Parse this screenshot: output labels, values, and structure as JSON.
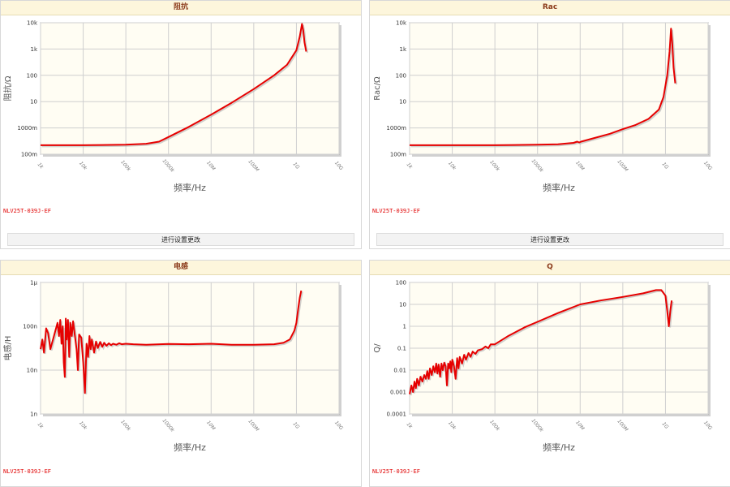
{
  "apply_button_label": "进行设置更改",
  "colors": {
    "series": "#e60000",
    "plot_bg": "#fffdf3",
    "header_bg": "#fdf6dc",
    "header_text": "#8b3a1a"
  },
  "chart_data": [
    {
      "id": "impedance",
      "type": "line",
      "title": "阻抗",
      "xlabel": "频率/Hz",
      "ylabel": "阻抗/Ω",
      "x_scale": "log",
      "y_scale": "log",
      "xlim": [
        1000,
        10000000000
      ],
      "ylim": [
        0.1,
        10000
      ],
      "x_ticks": [
        {
          "v": 1000,
          "label": "1k"
        },
        {
          "v": 10000,
          "label": "10k"
        },
        {
          "v": 100000,
          "label": "100k"
        },
        {
          "v": 1000000,
          "label": "1000k"
        },
        {
          "v": 10000000,
          "label": "10M"
        },
        {
          "v": 100000000,
          "label": "100M"
        },
        {
          "v": 1000000000,
          "label": "1G"
        },
        {
          "v": 10000000000,
          "label": "10G"
        }
      ],
      "y_ticks": [
        {
          "v": 0.1,
          "label": "100m"
        },
        {
          "v": 1,
          "label": "1000m"
        },
        {
          "v": 10,
          "label": "10"
        },
        {
          "v": 100,
          "label": "100"
        },
        {
          "v": 1000,
          "label": "1k"
        },
        {
          "v": 10000,
          "label": "10k"
        }
      ],
      "part_number": "NLV25T-039J-EF",
      "show_apply_button": true,
      "grid": true,
      "series": [
        {
          "x": [
            1000,
            10000,
            100000,
            300000,
            600000,
            1000000,
            3000000,
            10000000,
            30000000,
            100000000,
            300000000,
            600000000,
            1000000000,
            1200000000,
            1350000000,
            1450000000,
            1550000000,
            1700000000
          ],
          "y": [
            0.22,
            0.22,
            0.23,
            0.25,
            0.3,
            0.45,
            1.1,
            3.2,
            9,
            30,
            100,
            250,
            900,
            3000,
            9000,
            5000,
            1800,
            800
          ]
        }
      ]
    },
    {
      "id": "rac",
      "type": "line",
      "title": "Rac",
      "xlabel": "频率/Hz",
      "ylabel": "Rac/Ω",
      "x_scale": "log",
      "y_scale": "log",
      "xlim": [
        1000,
        10000000000
      ],
      "ylim": [
        0.1,
        10000
      ],
      "x_ticks": [
        {
          "v": 1000,
          "label": "1k"
        },
        {
          "v": 10000,
          "label": "10k"
        },
        {
          "v": 100000,
          "label": "100k"
        },
        {
          "v": 1000000,
          "label": "1000k"
        },
        {
          "v": 10000000,
          "label": "10M"
        },
        {
          "v": 100000000,
          "label": "100M"
        },
        {
          "v": 1000000000,
          "label": "1G"
        },
        {
          "v": 10000000000,
          "label": "10G"
        }
      ],
      "y_ticks": [
        {
          "v": 0.1,
          "label": "100m"
        },
        {
          "v": 1,
          "label": "1000m"
        },
        {
          "v": 10,
          "label": "10"
        },
        {
          "v": 100,
          "label": "100"
        },
        {
          "v": 1000,
          "label": "1k"
        },
        {
          "v": 10000,
          "label": "10k"
        }
      ],
      "part_number": "NLV25T-039J-EF",
      "show_apply_button": true,
      "grid": true,
      "series": [
        {
          "x": [
            1000,
            10000,
            100000,
            1000000,
            3000000,
            7000000,
            8500000,
            9500000,
            10500000,
            20000000,
            50000000,
            100000000,
            200000000,
            400000000,
            700000000,
            900000000,
            1100000000,
            1250000000,
            1350000000,
            1450000000,
            1550000000,
            1700000000
          ],
          "y": [
            0.22,
            0.22,
            0.22,
            0.23,
            0.24,
            0.27,
            0.3,
            0.28,
            0.3,
            0.4,
            0.6,
            0.9,
            1.3,
            2.2,
            5,
            15,
            100,
            800,
            6000,
            1500,
            200,
            50
          ]
        }
      ]
    },
    {
      "id": "inductance",
      "type": "line",
      "title": "电感",
      "xlabel": "频率/Hz",
      "ylabel": "电感/H",
      "x_scale": "log",
      "y_scale": "log",
      "xlim": [
        1000,
        10000000000
      ],
      "ylim": [
        1e-09,
        1e-06
      ],
      "x_ticks": [
        {
          "v": 1000,
          "label": "1k"
        },
        {
          "v": 10000,
          "label": "10k"
        },
        {
          "v": 100000,
          "label": "100k"
        },
        {
          "v": 1000000,
          "label": "1000k"
        },
        {
          "v": 10000000,
          "label": "10M"
        },
        {
          "v": 100000000,
          "label": "100M"
        },
        {
          "v": 1000000000,
          "label": "1G"
        },
        {
          "v": 10000000000,
          "label": "10G"
        }
      ],
      "y_ticks": [
        {
          "v": 1e-09,
          "label": "1n"
        },
        {
          "v": 1e-08,
          "label": "10n"
        },
        {
          "v": 1e-07,
          "label": "100n"
        },
        {
          "v": 1e-06,
          "label": "1μ"
        }
      ],
      "part_number": "NLV25T-039J-EF",
      "show_apply_button": false,
      "grid": true,
      "series": [
        {
          "x": [
            1000,
            1100,
            1200,
            1350,
            1500,
            1700,
            2500,
            2700,
            2900,
            3100,
            3300,
            3500,
            3700,
            3900,
            4100,
            4400,
            4700,
            5000,
            5400,
            5800,
            7000,
            7500,
            8000,
            9000,
            10000,
            11000,
            12000,
            13000,
            14000,
            15000,
            16000,
            18000,
            20000,
            22000,
            25000,
            28000,
            31000,
            35000,
            40000,
            45000,
            50000,
            60000,
            70000,
            80000,
            100000,
            150000,
            300000,
            1000000,
            3000000,
            10000000,
            30000000,
            100000000,
            300000000,
            500000000,
            700000000,
            900000000,
            1000000000,
            1100000000,
            1200000000,
            1300000000
          ],
          "y": [
            3e-08,
            5e-08,
            2.5e-08,
            9e-08,
            7e-08,
            3e-08,
            1.2e-07,
            6e-08,
            1.4e-07,
            4e-08,
            1e-07,
            1.5e-08,
            7e-09,
            1.5e-07,
            5e-08,
            1.4e-07,
            2e-08,
            1.2e-07,
            6e-08,
            1.3e-07,
            3e-08,
            1e-08,
            6.5e-08,
            5.5e-08,
            1.5e-08,
            3e-09,
            4e-08,
            2e-08,
            6e-08,
            3e-08,
            5e-08,
            2.5e-08,
            4.5e-08,
            3.2e-08,
            4.4e-08,
            3.4e-08,
            4.2e-08,
            3.6e-08,
            4.1e-08,
            3.7e-08,
            4e-08,
            3.8e-08,
            4.1e-08,
            3.9e-08,
            4e-08,
            3.9e-08,
            3.8e-08,
            3.95e-08,
            3.9e-08,
            4e-08,
            3.8e-08,
            3.8e-08,
            3.9e-08,
            4.2e-08,
            5e-08,
            8e-08,
            1.2e-07,
            2.5e-07,
            4.5e-07,
            6.5e-07
          ]
        }
      ]
    },
    {
      "id": "q",
      "type": "line",
      "title": "Q",
      "xlabel": "频率/Hz",
      "ylabel": "Q/",
      "x_scale": "log",
      "y_scale": "log",
      "xlim": [
        1000,
        10000000000
      ],
      "ylim": [
        0.0001,
        100
      ],
      "x_ticks": [
        {
          "v": 1000,
          "label": "1k"
        },
        {
          "v": 10000,
          "label": "10k"
        },
        {
          "v": 100000,
          "label": "100k"
        },
        {
          "v": 1000000,
          "label": "1000k"
        },
        {
          "v": 10000000,
          "label": "10M"
        },
        {
          "v": 100000000,
          "label": "100M"
        },
        {
          "v": 1000000000,
          "label": "1G"
        },
        {
          "v": 10000000000,
          "label": "10G"
        }
      ],
      "y_ticks": [
        {
          "v": 0.0001,
          "label": "0.0001"
        },
        {
          "v": 0.001,
          "label": "0.001"
        },
        {
          "v": 0.01,
          "label": "0.01"
        },
        {
          "v": 0.1,
          "label": "0.1"
        },
        {
          "v": 1,
          "label": "1"
        },
        {
          "v": 10,
          "label": "10"
        },
        {
          "v": 100,
          "label": "100"
        }
      ],
      "part_number": "NLV25T-039J-EF",
      "show_apply_button": false,
      "grid": true,
      "series": [
        {
          "x": [
            1000,
            1100,
            1200,
            1300,
            1400,
            1500,
            1650,
            1800,
            2000,
            2200,
            2400,
            2600,
            2800,
            3000,
            3300,
            3600,
            3900,
            4200,
            4500,
            4800,
            5200,
            5600,
            6000,
            6500,
            7000,
            7500,
            8000,
            8500,
            9000,
            9500,
            10000,
            11000,
            12000,
            13000,
            14000,
            15000,
            17000,
            19000,
            21000,
            24000,
            27000,
            30000,
            35000,
            40000,
            50000,
            60000,
            70000,
            80000,
            100000,
            200000,
            500000,
            1000000,
            3000000,
            10000000,
            30000000,
            100000000,
            300000000,
            600000000,
            800000000,
            1000000000,
            1100000000,
            1200000000,
            1300000000,
            1400000000
          ],
          "y": [
            0.0008,
            0.002,
            0.001,
            0.003,
            0.0015,
            0.004,
            0.002,
            0.005,
            0.003,
            0.006,
            0.004,
            0.009,
            0.004,
            0.012,
            0.006,
            0.015,
            0.008,
            0.02,
            0.007,
            0.018,
            0.005,
            0.02,
            0.01,
            0.022,
            0.015,
            0.002,
            0.02,
            0.012,
            0.025,
            0.008,
            0.03,
            0.015,
            0.004,
            0.035,
            0.012,
            0.04,
            0.02,
            0.05,
            0.03,
            0.06,
            0.04,
            0.07,
            0.055,
            0.08,
            0.09,
            0.12,
            0.1,
            0.15,
            0.15,
            0.35,
            0.9,
            1.6,
            4,
            10,
            15,
            22,
            32,
            45,
            45,
            25,
            5,
            1,
            5,
            15
          ]
        }
      ]
    }
  ]
}
